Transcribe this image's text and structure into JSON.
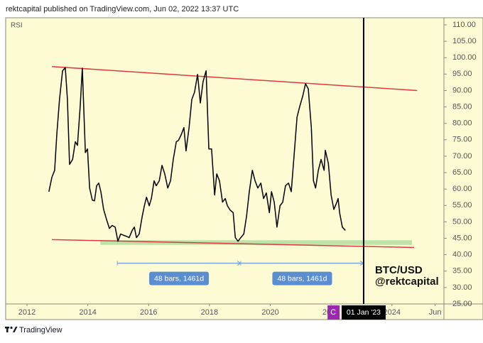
{
  "header": "rektcapital published on TradingView.com, Jun 02, 2022 13:37 UTC",
  "footer": "TradingView",
  "chart_data": {
    "type": "line",
    "x": [
      2012.72,
      2012.82,
      2012.91,
      2012.98,
      2013.07,
      2013.17,
      2013.26,
      2013.33,
      2013.4,
      2013.5,
      2013.59,
      2013.66,
      2013.75,
      2013.82,
      2013.92,
      2013.99,
      2014.06,
      2014.15,
      2014.22,
      2014.29,
      2014.36,
      2014.43,
      2014.52,
      2014.62,
      2014.71,
      2014.8,
      2014.9,
      2014.99,
      2015.08,
      2015.18,
      2015.27,
      2015.36,
      2015.46,
      2015.53,
      2015.6,
      2015.69,
      2015.79,
      2015.86,
      2015.93,
      2016.02,
      2016.09,
      2016.18,
      2016.25,
      2016.35,
      2016.44,
      2016.53,
      2016.63,
      2016.72,
      2016.81,
      2016.91,
      2016.98,
      2017.07,
      2017.16,
      2017.23,
      2017.33,
      2017.42,
      2017.51,
      2017.61,
      2017.7,
      2017.79,
      2017.89,
      2017.98,
      2018.07,
      2018.17,
      2018.24,
      2018.33,
      2018.43,
      2018.52,
      2018.59,
      2018.68,
      2018.78,
      2018.85,
      2018.94,
      2019.03,
      2019.13,
      2019.22,
      2019.31,
      2019.41,
      2019.5,
      2019.59,
      2019.69,
      2019.78,
      2019.87,
      2019.97,
      2020.04,
      2020.13,
      2020.22,
      2020.32,
      2020.41,
      2020.5,
      2020.6,
      2020.69,
      2020.79,
      2020.88,
      2020.97,
      2021.07,
      2021.16,
      2021.25,
      2021.35,
      2021.42,
      2021.49,
      2021.58,
      2021.67,
      2021.77,
      2021.81,
      2021.91,
      2022.0,
      2022.09,
      2022.19,
      2022.23,
      2022.28,
      2022.37,
      2022.47
    ],
    "series": [
      {
        "name": "RSI",
        "color": "#000000",
        "values": [
          59.2,
          63.6,
          65.7,
          76.5,
          87.3,
          96,
          97,
          87.3,
          67.5,
          69,
          74.4,
          73.3,
          85.2,
          96.8,
          71.1,
          72.2,
          60.3,
          56.6,
          56.4,
          61,
          61.8,
          59.2,
          53.8,
          50.6,
          48,
          48.9,
          48.4,
          44.1,
          46.3,
          45.9,
          45.6,
          45.2,
          47.4,
          48.4,
          45.2,
          46.3,
          51.7,
          54.9,
          57.5,
          54.9,
          57.1,
          62.5,
          61,
          62.5,
          67.2,
          64.6,
          60.3,
          62.5,
          69,
          74.4,
          74.8,
          76.5,
          78.7,
          71.6,
          78.7,
          87.3,
          89.5,
          94.9,
          86.2,
          92.7,
          96,
          72.2,
          72.2,
          58.2,
          64.6,
          62.5,
          56,
          57.1,
          54.9,
          53.6,
          52.8,
          45.2,
          44.1,
          45.2,
          46.3,
          51.7,
          59.2,
          65.7,
          62.5,
          60.3,
          61.8,
          57.1,
          58.8,
          52.8,
          59.2,
          56,
          48.4,
          54.9,
          56,
          61,
          61.8,
          59.2,
          71.1,
          81.9,
          85.2,
          88.4,
          92.1,
          90.5,
          78.7,
          62.5,
          60.3,
          65.7,
          69,
          65.7,
          71.8,
          67.8,
          58.2,
          53.8,
          56,
          57.1,
          52.8,
          48.4,
          47.4
        ]
      }
    ],
    "xlim": [
      2011.3,
      2025.71
    ],
    "ylim": [
      25,
      112.16
    ],
    "xticks": [
      2012,
      2014,
      2016,
      2018,
      2020,
      2022,
      2024,
      {
        "value": 2025.42,
        "label": "Jun"
      }
    ],
    "yticks": [
      {
        "value": 25,
        "label": "25.00"
      },
      {
        "value": 30,
        "label": "30.00"
      },
      {
        "value": 35,
        "label": "35.00"
      },
      {
        "value": 40,
        "label": "40.00"
      },
      {
        "value": 45,
        "label": "45.00"
      },
      {
        "value": 50,
        "label": "50.00"
      },
      {
        "value": 55,
        "label": "55.00"
      },
      {
        "value": 60,
        "label": "60.00"
      },
      {
        "value": 65,
        "label": "65.00"
      },
      {
        "value": 70,
        "label": "70.00"
      },
      {
        "value": 75,
        "label": "75.00"
      },
      {
        "value": 80,
        "label": "80.00"
      },
      {
        "value": 85,
        "label": "85.00"
      },
      {
        "value": 90,
        "label": "90.00"
      },
      {
        "value": 95,
        "label": "95.00"
      },
      {
        "value": 100,
        "label": "100.00"
      },
      {
        "value": 105,
        "label": "105.00"
      },
      {
        "value": 110,
        "label": "110.00"
      }
    ],
    "support_zone": {
      "color": "#bde3a8",
      "x": [
        2014.41,
        2024.66
      ],
      "y": [
        43,
        44.4
      ]
    },
    "trend_lines": [
      {
        "color": "#e0393e",
        "x": [
          2012.82,
          2024.83
        ],
        "y": [
          97.3,
          90
        ]
      },
      {
        "color": "#e0393e",
        "x": [
          2012.82,
          2024.73
        ],
        "y": [
          44.6,
          42.2
        ]
      }
    ],
    "measurements": [
      {
        "x": [
          2014.97,
          2019.03
        ],
        "y": 37.4,
        "label": "48 bars, 1461d"
      },
      {
        "x": [
          2019.03,
          2023.07
        ],
        "y": 37.4,
        "label": "48 bars, 1461d"
      }
    ],
    "marker_line": {
      "x": 2023.07,
      "label": "01 Jan '23"
    },
    "cursor_tag": {
      "x": 2022.07,
      "label": "C",
      "color": "#9c27b0"
    },
    "watermark": [
      "BTC/USD",
      "@rektcapital"
    ]
  }
}
